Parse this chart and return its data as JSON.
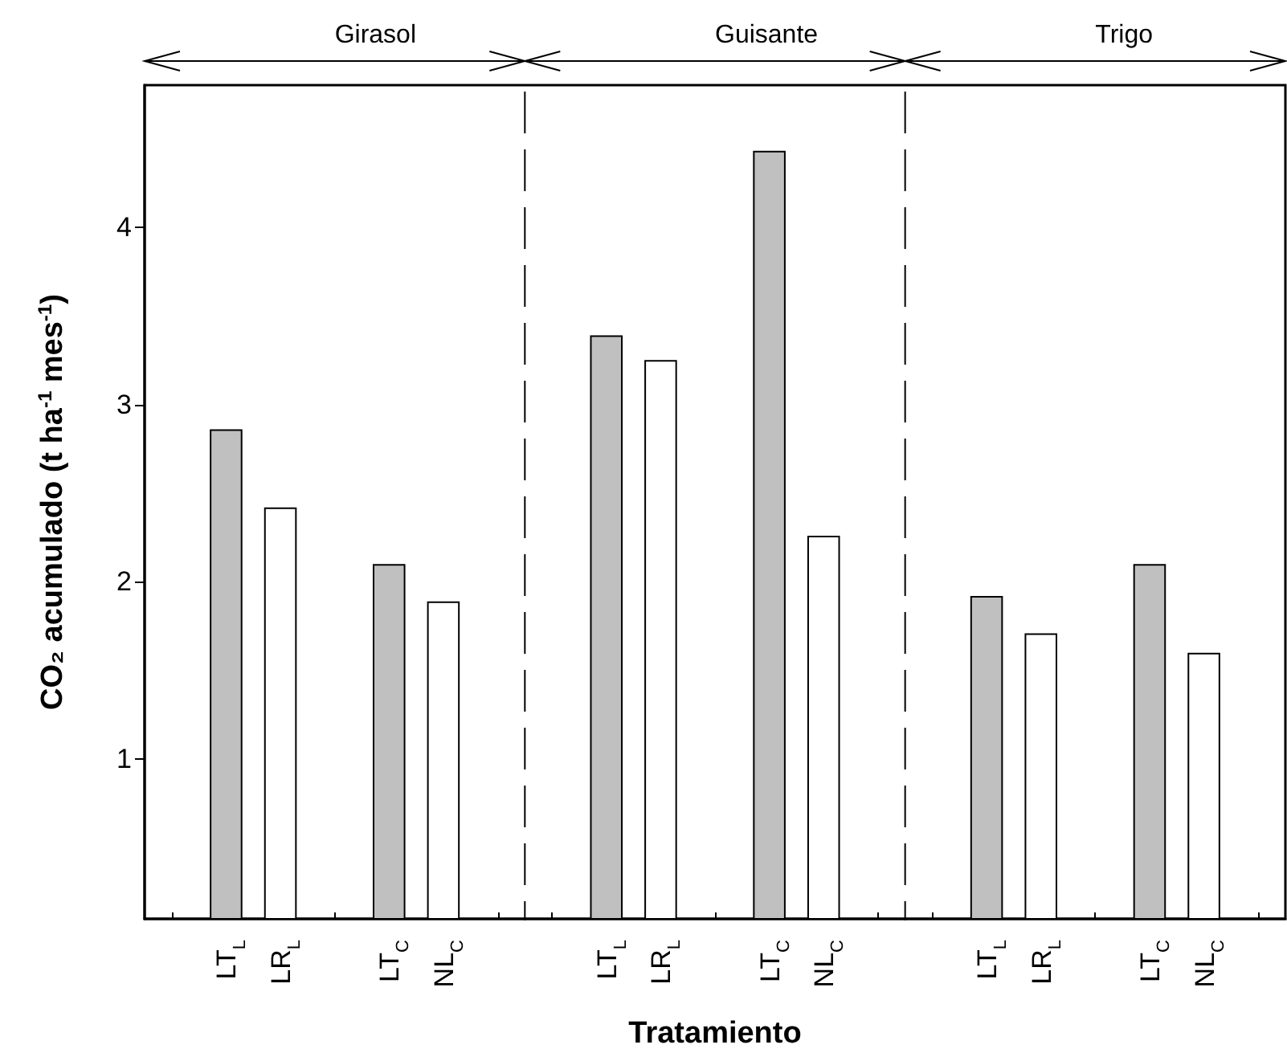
{
  "chart_data": {
    "type": "bar",
    "xlabel": "Tratamiento",
    "ylabel": "CO₂ acumulado (t ha$^{-1}$ mes$^{-1}$)",
    "annotations": [
      "Girasol",
      "Guisante",
      "Trigo"
    ],
    "categories": [
      null,
      "LT$_{L}$",
      "LR$_{L}$",
      null,
      "LT$_{C}$",
      "NL$_{C}$",
      null,
      null,
      "LT$_{L}$",
      "LR$_{L}$",
      null,
      "LT$_{C}$",
      "NL$_{C}$",
      null,
      null,
      "LT$_{L}$",
      "LR$_{L}$",
      null,
      "LT$_{C}$",
      "NL$_{C}$",
      null
    ],
    "values": [
      null,
      2.86,
      2.42,
      null,
      2.1,
      1.89,
      null,
      null,
      3.39,
      3.25,
      null,
      4.43,
      2.26,
      null,
      null,
      1.92,
      1.71,
      null,
      2.1,
      1.6,
      null
    ],
    "colors": [
      null,
      "#c0c0c0",
      "#ffffff",
      null,
      "#c0c0c0",
      "#ffffff",
      null,
      null,
      "#c0c0c0",
      "#ffffff",
      null,
      "#c0c0c0",
      "#ffffff",
      null,
      null,
      "#c0c0c0",
      "#ffffff",
      null,
      "#c0c0c0",
      "#ffffff",
      null
    ],
    "ylim": [
      0.1,
      4.8
    ],
    "yticks": [
      1,
      2,
      3,
      4
    ],
    "grid": false
  }
}
